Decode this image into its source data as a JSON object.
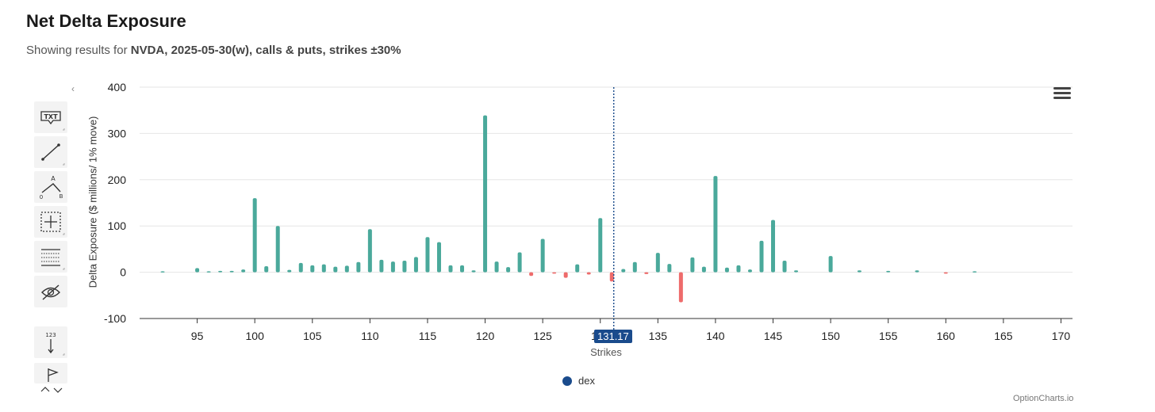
{
  "header": {
    "title": "Net Delta Exposure",
    "subtitle_prefix": "Showing results for ",
    "subtitle_bold": "NVDA, 2025-05-30(w), calls & puts, strikes ±30%"
  },
  "toolbar": {
    "collapse_glyph": "‹",
    "tools": [
      {
        "name": "text-annotation-tool",
        "glyph": "TXT"
      },
      {
        "name": "line-tool",
        "glyph": "line"
      },
      {
        "name": "measure-tool",
        "glyph": "A 0 B"
      },
      {
        "name": "crosshair-tool",
        "glyph": "crosshair"
      },
      {
        "name": "grid-tool",
        "glyph": "grid"
      },
      {
        "name": "hide-tool",
        "glyph": "eye-slash"
      },
      {
        "name": "label-tool",
        "glyph": "123"
      },
      {
        "name": "flag-tool",
        "glyph": "flag"
      }
    ],
    "arrows": "^ v"
  },
  "menu": {
    "icon": "hamburger-menu-icon"
  },
  "legend": {
    "label": "dex",
    "color": "#1a4b8c"
  },
  "credits": "OptionCharts.io",
  "crosshair": {
    "value": "131.17",
    "x": 131.17
  },
  "colors": {
    "positive": "#4aa99b",
    "negative": "#ee6b6b",
    "crosshair": "#1a4b8c",
    "grid": "#e6e6e6"
  },
  "chart_data": {
    "type": "bar",
    "xlabel": "Strikes",
    "ylabel": "Delta Exposure ($ millions/ 1% move)",
    "xlim": [
      90,
      171
    ],
    "ylim": [
      -100,
      400
    ],
    "xticks": [
      95,
      100,
      105,
      110,
      115,
      120,
      125,
      130,
      135,
      140,
      145,
      150,
      155,
      160,
      165,
      170
    ],
    "yticks": [
      -100,
      0,
      100,
      200,
      300,
      400
    ],
    "grid": true,
    "legend_position": "bottom-center",
    "x": [
      92,
      95,
      96,
      97,
      98,
      99,
      100,
      101,
      102,
      103,
      104,
      105,
      106,
      107,
      108,
      109,
      110,
      111,
      112,
      113,
      114,
      115,
      116,
      117,
      118,
      119,
      120,
      121,
      122,
      123,
      124,
      125,
      126,
      127,
      128,
      129,
      130,
      131,
      132,
      133,
      134,
      135,
      136,
      137,
      138,
      139,
      140,
      141,
      142,
      143,
      144,
      145,
      146,
      147,
      150,
      152.5,
      155,
      157.5,
      160,
      162.5
    ],
    "values": [
      2,
      9,
      2,
      3,
      3,
      6,
      160,
      13,
      100,
      5,
      20,
      15,
      17,
      12,
      14,
      22,
      93,
      27,
      23,
      25,
      33,
      76,
      65,
      15,
      15,
      4,
      339,
      23,
      11,
      43,
      -8,
      72,
      -3,
      -12,
      17,
      -5,
      117,
      -20,
      7,
      22,
      -4,
      42,
      18,
      -65,
      32,
      12,
      208,
      10,
      15,
      6,
      68,
      113,
      25,
      4,
      35,
      4,
      3,
      4,
      -3,
      2
    ]
  }
}
